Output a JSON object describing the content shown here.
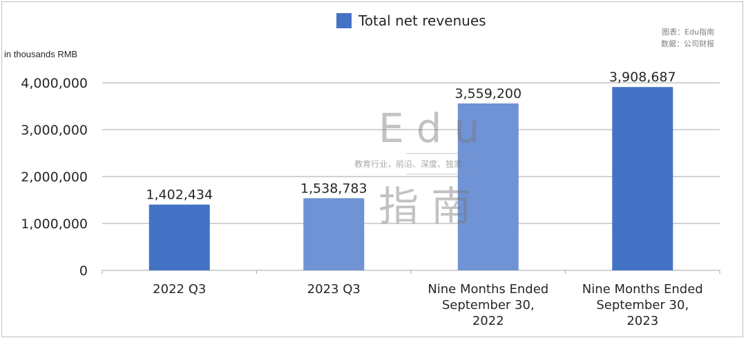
{
  "legend": {
    "label": "Total net revenues",
    "color": "#4472c4"
  },
  "source": {
    "line1": "图表：Edu指南",
    "line2": "数据：公司财报"
  },
  "watermark": {
    "big_top": "Edu",
    "small": "教育行业，前沿、深度、独家",
    "big_bottom": "指南"
  },
  "chart_data": {
    "type": "bar",
    "title": "",
    "ylabel": "in thousands RMB",
    "xlabel": "",
    "ylim": [
      0,
      4000000
    ],
    "yticks": [
      "0",
      "1,000,000",
      "2,000,000",
      "3,000,000",
      "4,000,000"
    ],
    "grid": true,
    "legend_position": "top-center",
    "categories": [
      [
        "2022 Q3"
      ],
      [
        "2023 Q3"
      ],
      [
        "Nine Months Ended",
        "September 30,",
        "2022"
      ],
      [
        "Nine Months Ended",
        "September 30,",
        "2023"
      ]
    ],
    "series": [
      {
        "name": "Total net revenues",
        "values": [
          1402434,
          1538783,
          3559200,
          3908687
        ],
        "value_labels": [
          "1,402,434",
          "1,538,783",
          "3,559,200",
          "3,908,687"
        ],
        "bar_colors": [
          "#4472c4",
          "#6f93d4",
          "#6f93d4",
          "#4472c4"
        ]
      }
    ]
  }
}
